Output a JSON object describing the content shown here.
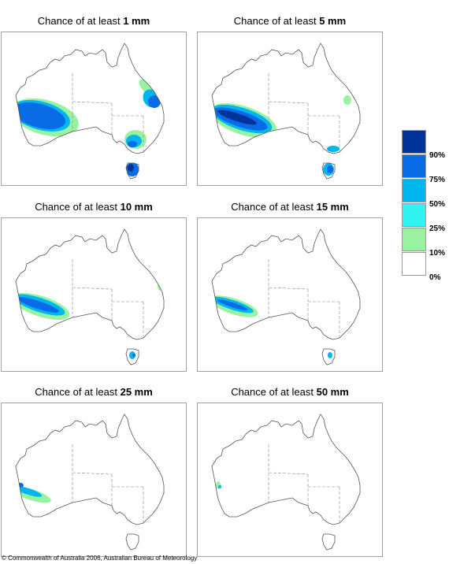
{
  "title_prefix": "Chance of at least",
  "panels": [
    {
      "amount": "1 mm"
    },
    {
      "amount": "5 mm"
    },
    {
      "amount": "10 mm"
    },
    {
      "amount": "15 mm"
    },
    {
      "amount": "25 mm"
    },
    {
      "amount": "50 mm"
    }
  ],
  "legend": {
    "labels": [
      "90%",
      "75%",
      "50%",
      "25%",
      "10%",
      "0%"
    ],
    "colors": [
      "#00349a",
      "#0a6be6",
      "#00b6ee",
      "#33f2f2",
      "#99f2a0",
      "#ffffff"
    ]
  },
  "footer": "© Commonwealth of Australia 2006, Australian Bureau of Meteorology"
}
